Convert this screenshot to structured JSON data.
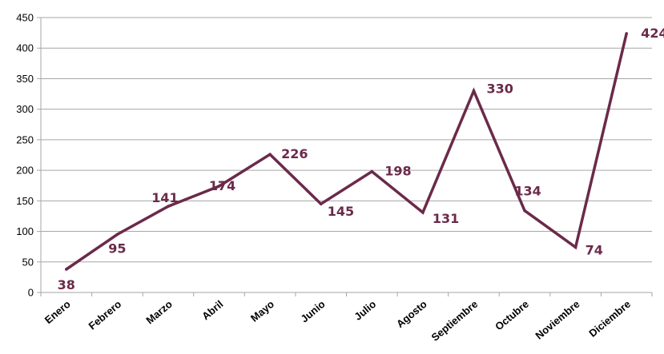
{
  "chart_data": {
    "type": "line",
    "categories": [
      "Enero",
      "Febrero",
      "Marzo",
      "Abril",
      "Mayo",
      "Junio",
      "Julio",
      "Agosto",
      "Septiembre",
      "Octubre",
      "Noviembre",
      "Diciembre"
    ],
    "series": [
      {
        "values": [
          38,
          95,
          141,
          174,
          226,
          145,
          198,
          131,
          330,
          134,
          74,
          424
        ]
      }
    ],
    "data_labels": [
      "38",
      "95",
      "141",
      "174",
      "226",
      "145",
      "198",
      "131",
      "330",
      "134",
      "74",
      "424"
    ],
    "y_ticks": [
      "0",
      "50",
      "100",
      "150",
      "200",
      "250",
      "300",
      "350",
      "400",
      "450"
    ],
    "ylim": [
      0,
      450
    ],
    "grid": true,
    "legend": "none",
    "line_color": "#6b2a4a",
    "label_color": "#6b2a4a",
    "grid_color": "#a6a6a6"
  }
}
